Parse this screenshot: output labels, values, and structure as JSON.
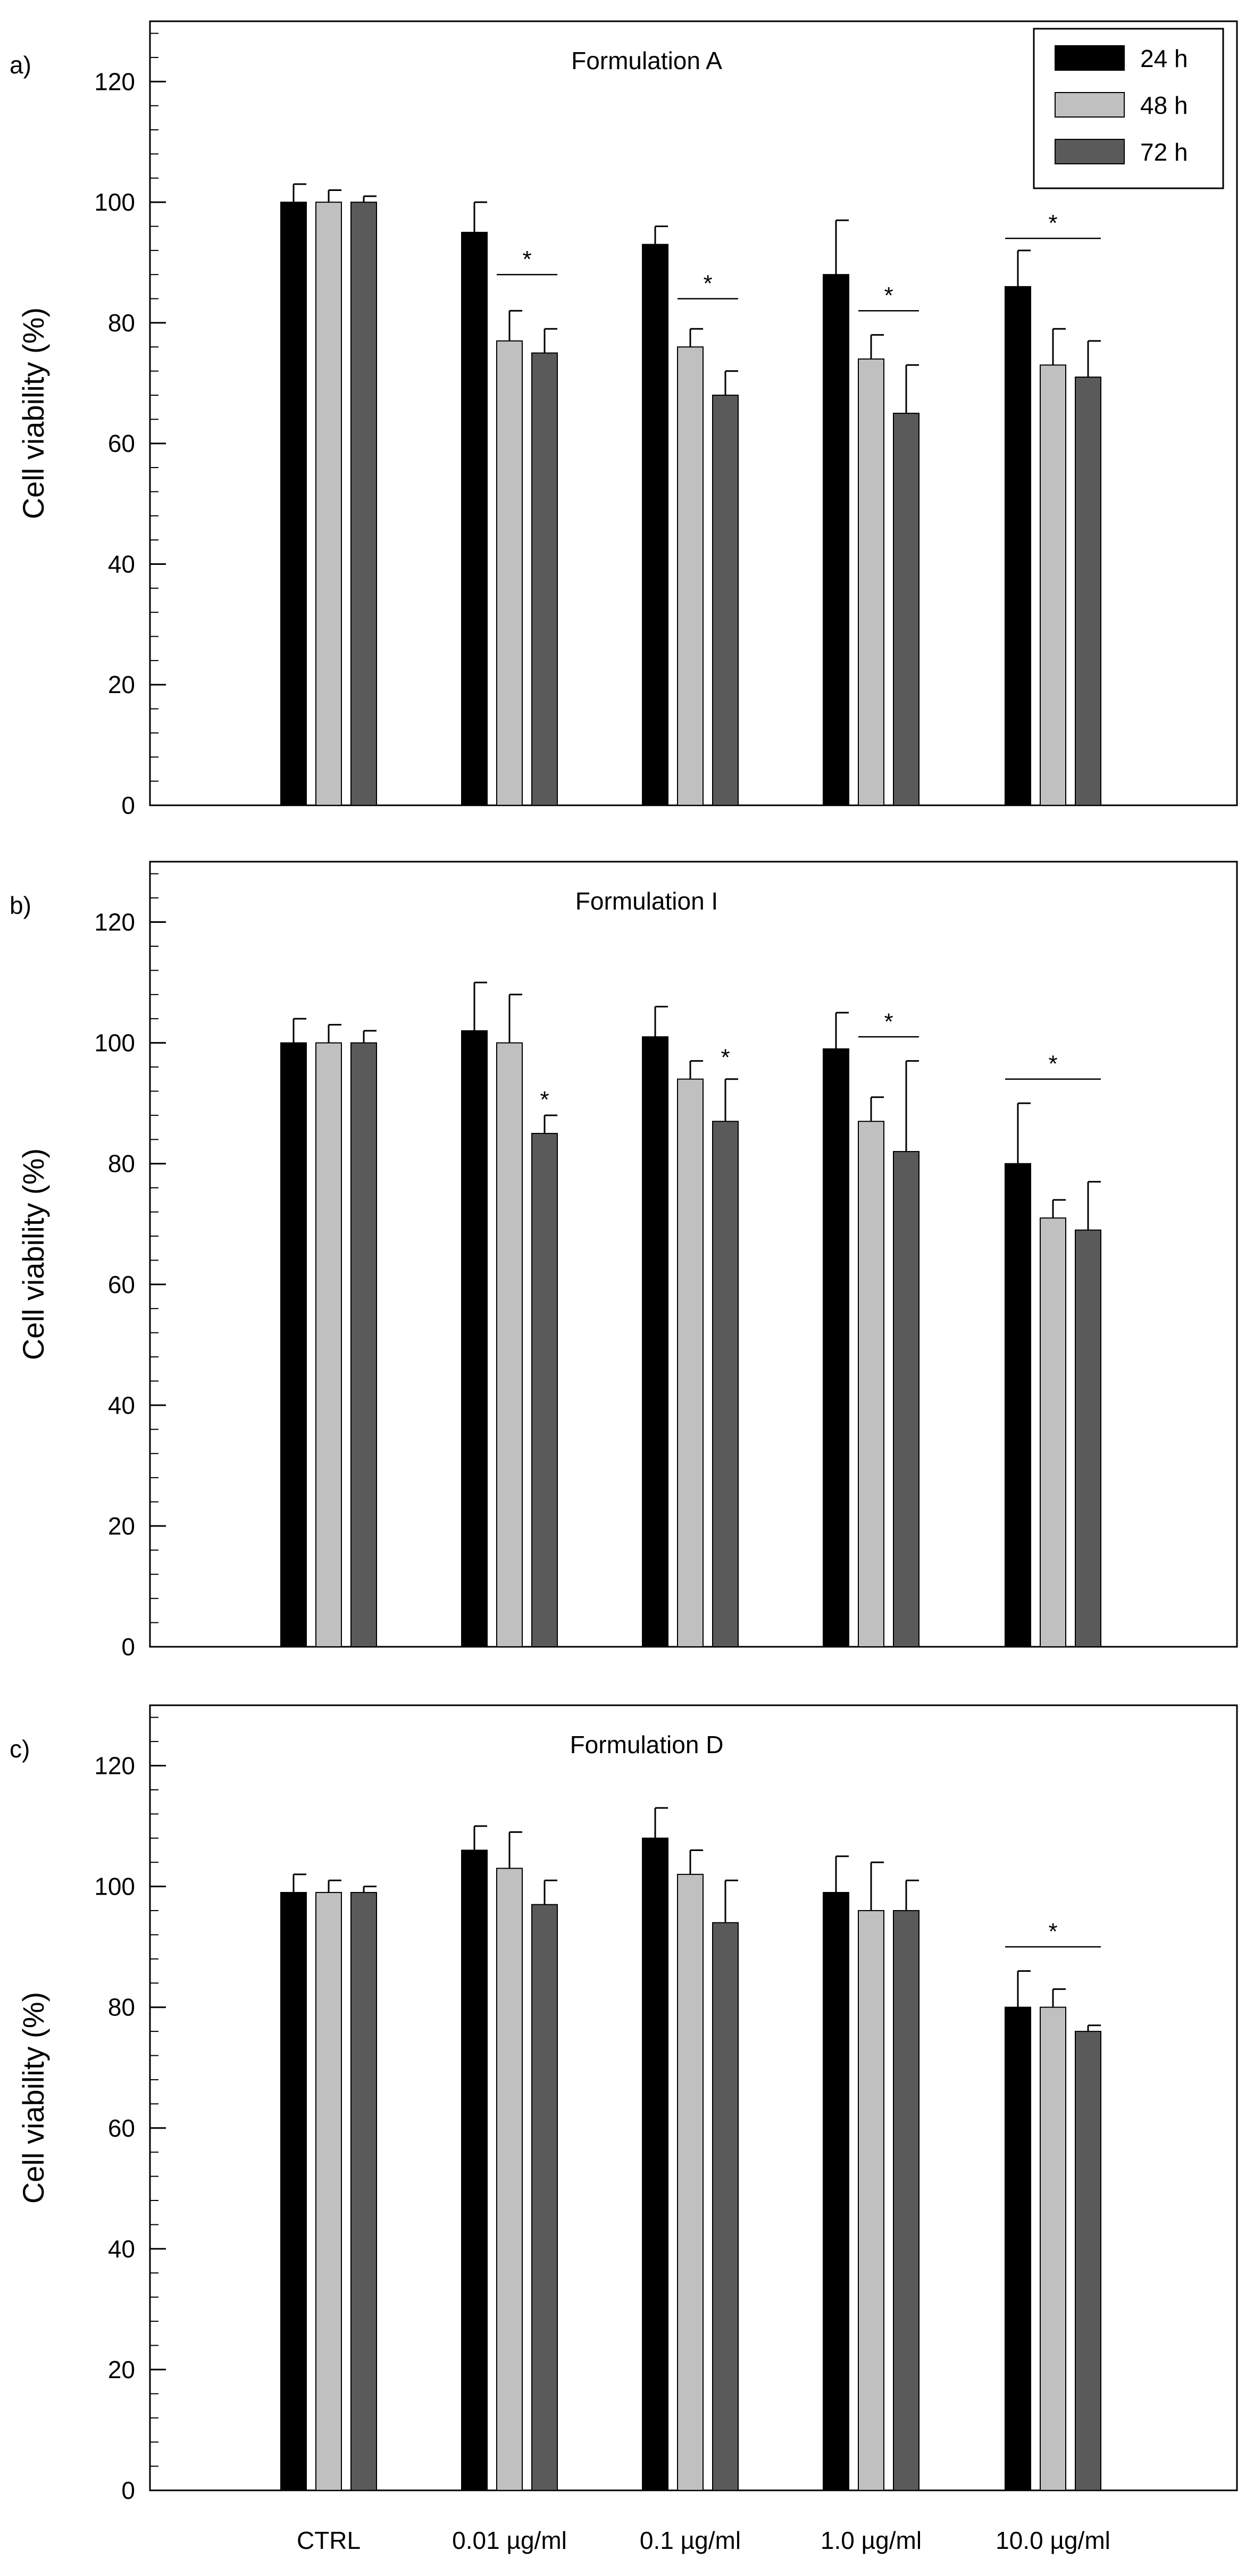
{
  "legend": [
    {
      "label": "24 h",
      "color": "#000000"
    },
    {
      "label": "48 h",
      "color": "#c0c0c0"
    },
    {
      "label": "72 h",
      "color": "#5a5a5a"
    }
  ],
  "star_symbol": "*",
  "chart_data": [
    {
      "panel_label": "a)",
      "type": "bar",
      "title": "Formulation A",
      "xlabel": "",
      "ylabel": "Cell viability (%)",
      "ylim": [
        0,
        130
      ],
      "yticks": [
        0,
        20,
        40,
        60,
        80,
        100,
        120
      ],
      "categories": [
        "CTRL",
        "0.01 µg/ml",
        "0.1 µg/ml",
        "1.0 µg/ml",
        "10.0 µg/ml"
      ],
      "show_category_labels": false,
      "legend_position": "top-right",
      "series": [
        {
          "name": "24 h",
          "values": [
            100,
            95,
            93,
            88,
            86
          ],
          "errors": [
            3,
            5,
            3,
            9,
            6
          ]
        },
        {
          "name": "48 h",
          "values": [
            100,
            77,
            76,
            74,
            73
          ],
          "errors": [
            2,
            5,
            3,
            4,
            6
          ]
        },
        {
          "name": "72 h",
          "values": [
            100,
            75,
            68,
            65,
            71
          ],
          "errors": [
            1,
            4,
            4,
            8,
            6
          ]
        }
      ],
      "significance": [
        {
          "category": 1,
          "from_series": 1,
          "to_series": 2,
          "y": 88
        },
        {
          "category": 2,
          "from_series": 1,
          "to_series": 2,
          "y": 84
        },
        {
          "category": 3,
          "from_series": 1,
          "to_series": 2,
          "y": 82
        },
        {
          "category": 4,
          "from_series": 0,
          "to_series": 2,
          "y": 94
        }
      ]
    },
    {
      "panel_label": "b)",
      "type": "bar",
      "title": "Formulation I",
      "xlabel": "",
      "ylabel": "Cell viability (%)",
      "ylim": [
        0,
        130
      ],
      "yticks": [
        0,
        20,
        40,
        60,
        80,
        100,
        120
      ],
      "categories": [
        "CTRL",
        "0.01 µg/ml",
        "0.1 µg/ml",
        "1.0 µg/ml",
        "10.0 µg/ml"
      ],
      "show_category_labels": false,
      "series": [
        {
          "name": "24 h",
          "values": [
            100,
            102,
            101,
            99,
            80
          ],
          "errors": [
            4,
            8,
            5,
            6,
            10
          ]
        },
        {
          "name": "48 h",
          "values": [
            100,
            100,
            94,
            87,
            71
          ],
          "errors": [
            3,
            8,
            3,
            4,
            3
          ]
        },
        {
          "name": "72 h",
          "values": [
            100,
            85,
            87,
            82,
            69
          ],
          "errors": [
            2,
            3,
            7,
            15,
            8
          ]
        }
      ],
      "significance": [
        {
          "category": 3,
          "from_series": 1,
          "to_series": 2,
          "y": 101
        },
        {
          "category": 4,
          "from_series": 0,
          "to_series": 2,
          "y": 94
        }
      ],
      "stars_only": [
        {
          "category": 1,
          "series": 2,
          "y": 90
        },
        {
          "category": 2,
          "series": 2,
          "y": 97
        }
      ]
    },
    {
      "panel_label": "c)",
      "type": "bar",
      "title": "Formulation D",
      "xlabel": "",
      "ylabel": "Cell viability (%)",
      "ylim": [
        0,
        130
      ],
      "yticks": [
        0,
        20,
        40,
        60,
        80,
        100,
        120
      ],
      "categories": [
        "CTRL",
        "0.01 µg/ml",
        "0.1 µg/ml",
        "1.0 µg/ml",
        "10.0 µg/ml"
      ],
      "show_category_labels": true,
      "series": [
        {
          "name": "24 h",
          "values": [
            99,
            106,
            108,
            99,
            80
          ],
          "errors": [
            3,
            4,
            5,
            6,
            6
          ]
        },
        {
          "name": "48 h",
          "values": [
            99,
            103,
            102,
            96,
            80
          ],
          "errors": [
            2,
            6,
            4,
            8,
            3
          ]
        },
        {
          "name": "72 h",
          "values": [
            99,
            97,
            94,
            96,
            76
          ],
          "errors": [
            1,
            4,
            7,
            5,
            1
          ]
        }
      ],
      "significance": [
        {
          "category": 4,
          "from_series": 0,
          "to_series": 2,
          "y": 90
        }
      ]
    }
  ]
}
